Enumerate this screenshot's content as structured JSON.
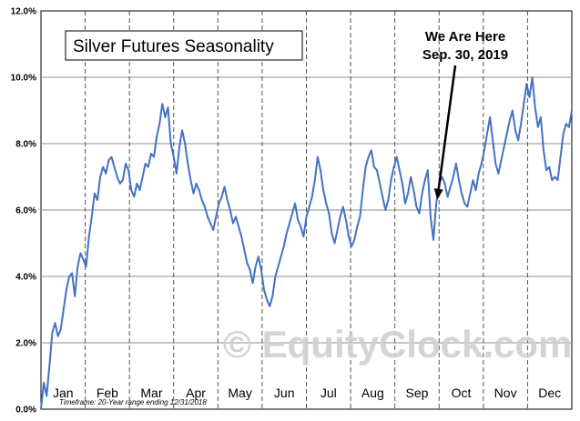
{
  "chart_data": {
    "type": "line",
    "title": "Silver Futures Seasonality",
    "annotation": {
      "lines": [
        "We Are Here",
        "Sep. 30, 2019"
      ],
      "target_month": "Sep",
      "target_day": 30
    },
    "footnote": "Timeframe:  20-Year range ending 12/31/2018",
    "watermark": "© EquityClock.com",
    "y_ticks": [
      "0.0%",
      "2.0%",
      "4.0%",
      "6.0%",
      "8.0%",
      "10.0%",
      "12.0%"
    ],
    "ylim": [
      0,
      12
    ],
    "categories": [
      "Jan",
      "Feb",
      "Mar",
      "Apr",
      "May",
      "Jun",
      "Jul",
      "Aug",
      "Sep",
      "Oct",
      "Nov",
      "Dec"
    ],
    "grid": "vertical-dashed-at-month-starts, horizontal-solid",
    "series": [
      {
        "color": "#4472c4",
        "points": [
          [
            0,
            0.0
          ],
          [
            2,
            0.8
          ],
          [
            4,
            0.4
          ],
          [
            6,
            1.3
          ],
          [
            8,
            2.3
          ],
          [
            10,
            2.6
          ],
          [
            12,
            2.2
          ],
          [
            14,
            2.4
          ],
          [
            16,
            3.0
          ],
          [
            18,
            3.6
          ],
          [
            20,
            4.0
          ],
          [
            22,
            4.1
          ],
          [
            24,
            3.4
          ],
          [
            26,
            4.3
          ],
          [
            28,
            4.7
          ],
          [
            30,
            4.5
          ],
          [
            32,
            4.3
          ],
          [
            34,
            5.2
          ],
          [
            36,
            5.8
          ],
          [
            38,
            6.5
          ],
          [
            40,
            6.3
          ],
          [
            42,
            7.0
          ],
          [
            44,
            7.3
          ],
          [
            46,
            7.1
          ],
          [
            48,
            7.5
          ],
          [
            50,
            7.6
          ],
          [
            52,
            7.3
          ],
          [
            54,
            7.0
          ],
          [
            56,
            6.8
          ],
          [
            58,
            6.9
          ],
          [
            60,
            7.4
          ],
          [
            62,
            7.2
          ],
          [
            64,
            6.6
          ],
          [
            66,
            6.4
          ],
          [
            68,
            6.8
          ],
          [
            70,
            6.6
          ],
          [
            72,
            7.0
          ],
          [
            74,
            7.4
          ],
          [
            76,
            7.3
          ],
          [
            78,
            7.7
          ],
          [
            80,
            7.6
          ],
          [
            82,
            8.2
          ],
          [
            84,
            8.6
          ],
          [
            86,
            9.2
          ],
          [
            88,
            8.8
          ],
          [
            90,
            9.1
          ],
          [
            92,
            8.0
          ],
          [
            94,
            7.6
          ],
          [
            96,
            7.1
          ],
          [
            98,
            7.9
          ],
          [
            100,
            8.4
          ],
          [
            102,
            8.0
          ],
          [
            104,
            7.4
          ],
          [
            106,
            6.9
          ],
          [
            108,
            6.5
          ],
          [
            110,
            6.8
          ],
          [
            112,
            6.6
          ],
          [
            114,
            6.3
          ],
          [
            116,
            6.1
          ],
          [
            118,
            5.8
          ],
          [
            120,
            5.6
          ],
          [
            122,
            5.4
          ],
          [
            124,
            5.8
          ],
          [
            126,
            6.2
          ],
          [
            128,
            6.4
          ],
          [
            130,
            6.7
          ],
          [
            132,
            6.3
          ],
          [
            134,
            6.0
          ],
          [
            136,
            5.6
          ],
          [
            138,
            5.8
          ],
          [
            140,
            5.5
          ],
          [
            142,
            5.2
          ],
          [
            144,
            4.8
          ],
          [
            146,
            4.4
          ],
          [
            148,
            4.2
          ],
          [
            150,
            3.8
          ],
          [
            152,
            4.3
          ],
          [
            154,
            4.6
          ],
          [
            156,
            4.2
          ],
          [
            158,
            3.6
          ],
          [
            160,
            3.3
          ],
          [
            162,
            3.1
          ],
          [
            164,
            3.4
          ],
          [
            166,
            4.0
          ],
          [
            168,
            4.3
          ],
          [
            170,
            4.6
          ],
          [
            172,
            4.9
          ],
          [
            174,
            5.3
          ],
          [
            176,
            5.6
          ],
          [
            178,
            5.9
          ],
          [
            180,
            6.2
          ],
          [
            182,
            5.7
          ],
          [
            184,
            5.5
          ],
          [
            186,
            5.2
          ],
          [
            188,
            5.8
          ],
          [
            190,
            6.1
          ],
          [
            192,
            6.4
          ],
          [
            194,
            6.9
          ],
          [
            196,
            7.6
          ],
          [
            198,
            7.2
          ],
          [
            200,
            6.6
          ],
          [
            202,
            6.2
          ],
          [
            204,
            5.9
          ],
          [
            206,
            5.3
          ],
          [
            208,
            5.0
          ],
          [
            210,
            5.4
          ],
          [
            212,
            5.8
          ],
          [
            214,
            6.1
          ],
          [
            216,
            5.7
          ],
          [
            218,
            5.2
          ],
          [
            220,
            4.9
          ],
          [
            222,
            5.1
          ],
          [
            224,
            5.5
          ],
          [
            226,
            5.8
          ],
          [
            228,
            6.6
          ],
          [
            230,
            7.3
          ],
          [
            232,
            7.6
          ],
          [
            234,
            7.8
          ],
          [
            236,
            7.3
          ],
          [
            238,
            7.2
          ],
          [
            240,
            6.8
          ],
          [
            242,
            6.4
          ],
          [
            244,
            6.0
          ],
          [
            246,
            6.3
          ],
          [
            248,
            6.9
          ],
          [
            250,
            7.3
          ],
          [
            252,
            7.6
          ],
          [
            254,
            7.2
          ],
          [
            256,
            6.8
          ],
          [
            258,
            6.2
          ],
          [
            260,
            6.5
          ],
          [
            262,
            7.0
          ],
          [
            264,
            6.6
          ],
          [
            266,
            6.1
          ],
          [
            268,
            5.9
          ],
          [
            270,
            6.5
          ],
          [
            272,
            6.9
          ],
          [
            274,
            7.2
          ],
          [
            276,
            5.8
          ],
          [
            278,
            5.1
          ],
          [
            280,
            6.2
          ],
          [
            282,
            6.8
          ],
          [
            284,
            7.0
          ],
          [
            286,
            6.8
          ],
          [
            288,
            6.4
          ],
          [
            290,
            6.7
          ],
          [
            292,
            7.0
          ],
          [
            294,
            7.4
          ],
          [
            296,
            6.9
          ],
          [
            298,
            6.5
          ],
          [
            300,
            6.2
          ],
          [
            302,
            6.1
          ],
          [
            304,
            6.5
          ],
          [
            306,
            6.9
          ],
          [
            308,
            6.6
          ],
          [
            310,
            7.1
          ],
          [
            312,
            7.4
          ],
          [
            314,
            7.8
          ],
          [
            316,
            8.3
          ],
          [
            318,
            8.8
          ],
          [
            320,
            8.1
          ],
          [
            322,
            7.4
          ],
          [
            324,
            7.1
          ],
          [
            326,
            7.5
          ],
          [
            328,
            7.9
          ],
          [
            330,
            8.3
          ],
          [
            332,
            8.7
          ],
          [
            334,
            9.0
          ],
          [
            336,
            8.4
          ],
          [
            338,
            8.1
          ],
          [
            340,
            8.6
          ],
          [
            342,
            9.2
          ],
          [
            344,
            9.8
          ],
          [
            346,
            9.4
          ],
          [
            348,
            10.0
          ],
          [
            350,
            9.1
          ],
          [
            352,
            8.5
          ],
          [
            354,
            8.8
          ],
          [
            356,
            7.8
          ],
          [
            358,
            7.2
          ],
          [
            360,
            7.3
          ],
          [
            362,
            6.9
          ],
          [
            364,
            7.0
          ],
          [
            366,
            6.9
          ],
          [
            368,
            7.6
          ],
          [
            370,
            8.3
          ],
          [
            372,
            8.6
          ],
          [
            374,
            8.5
          ],
          [
            376,
            9.0
          ]
        ]
      }
    ]
  }
}
